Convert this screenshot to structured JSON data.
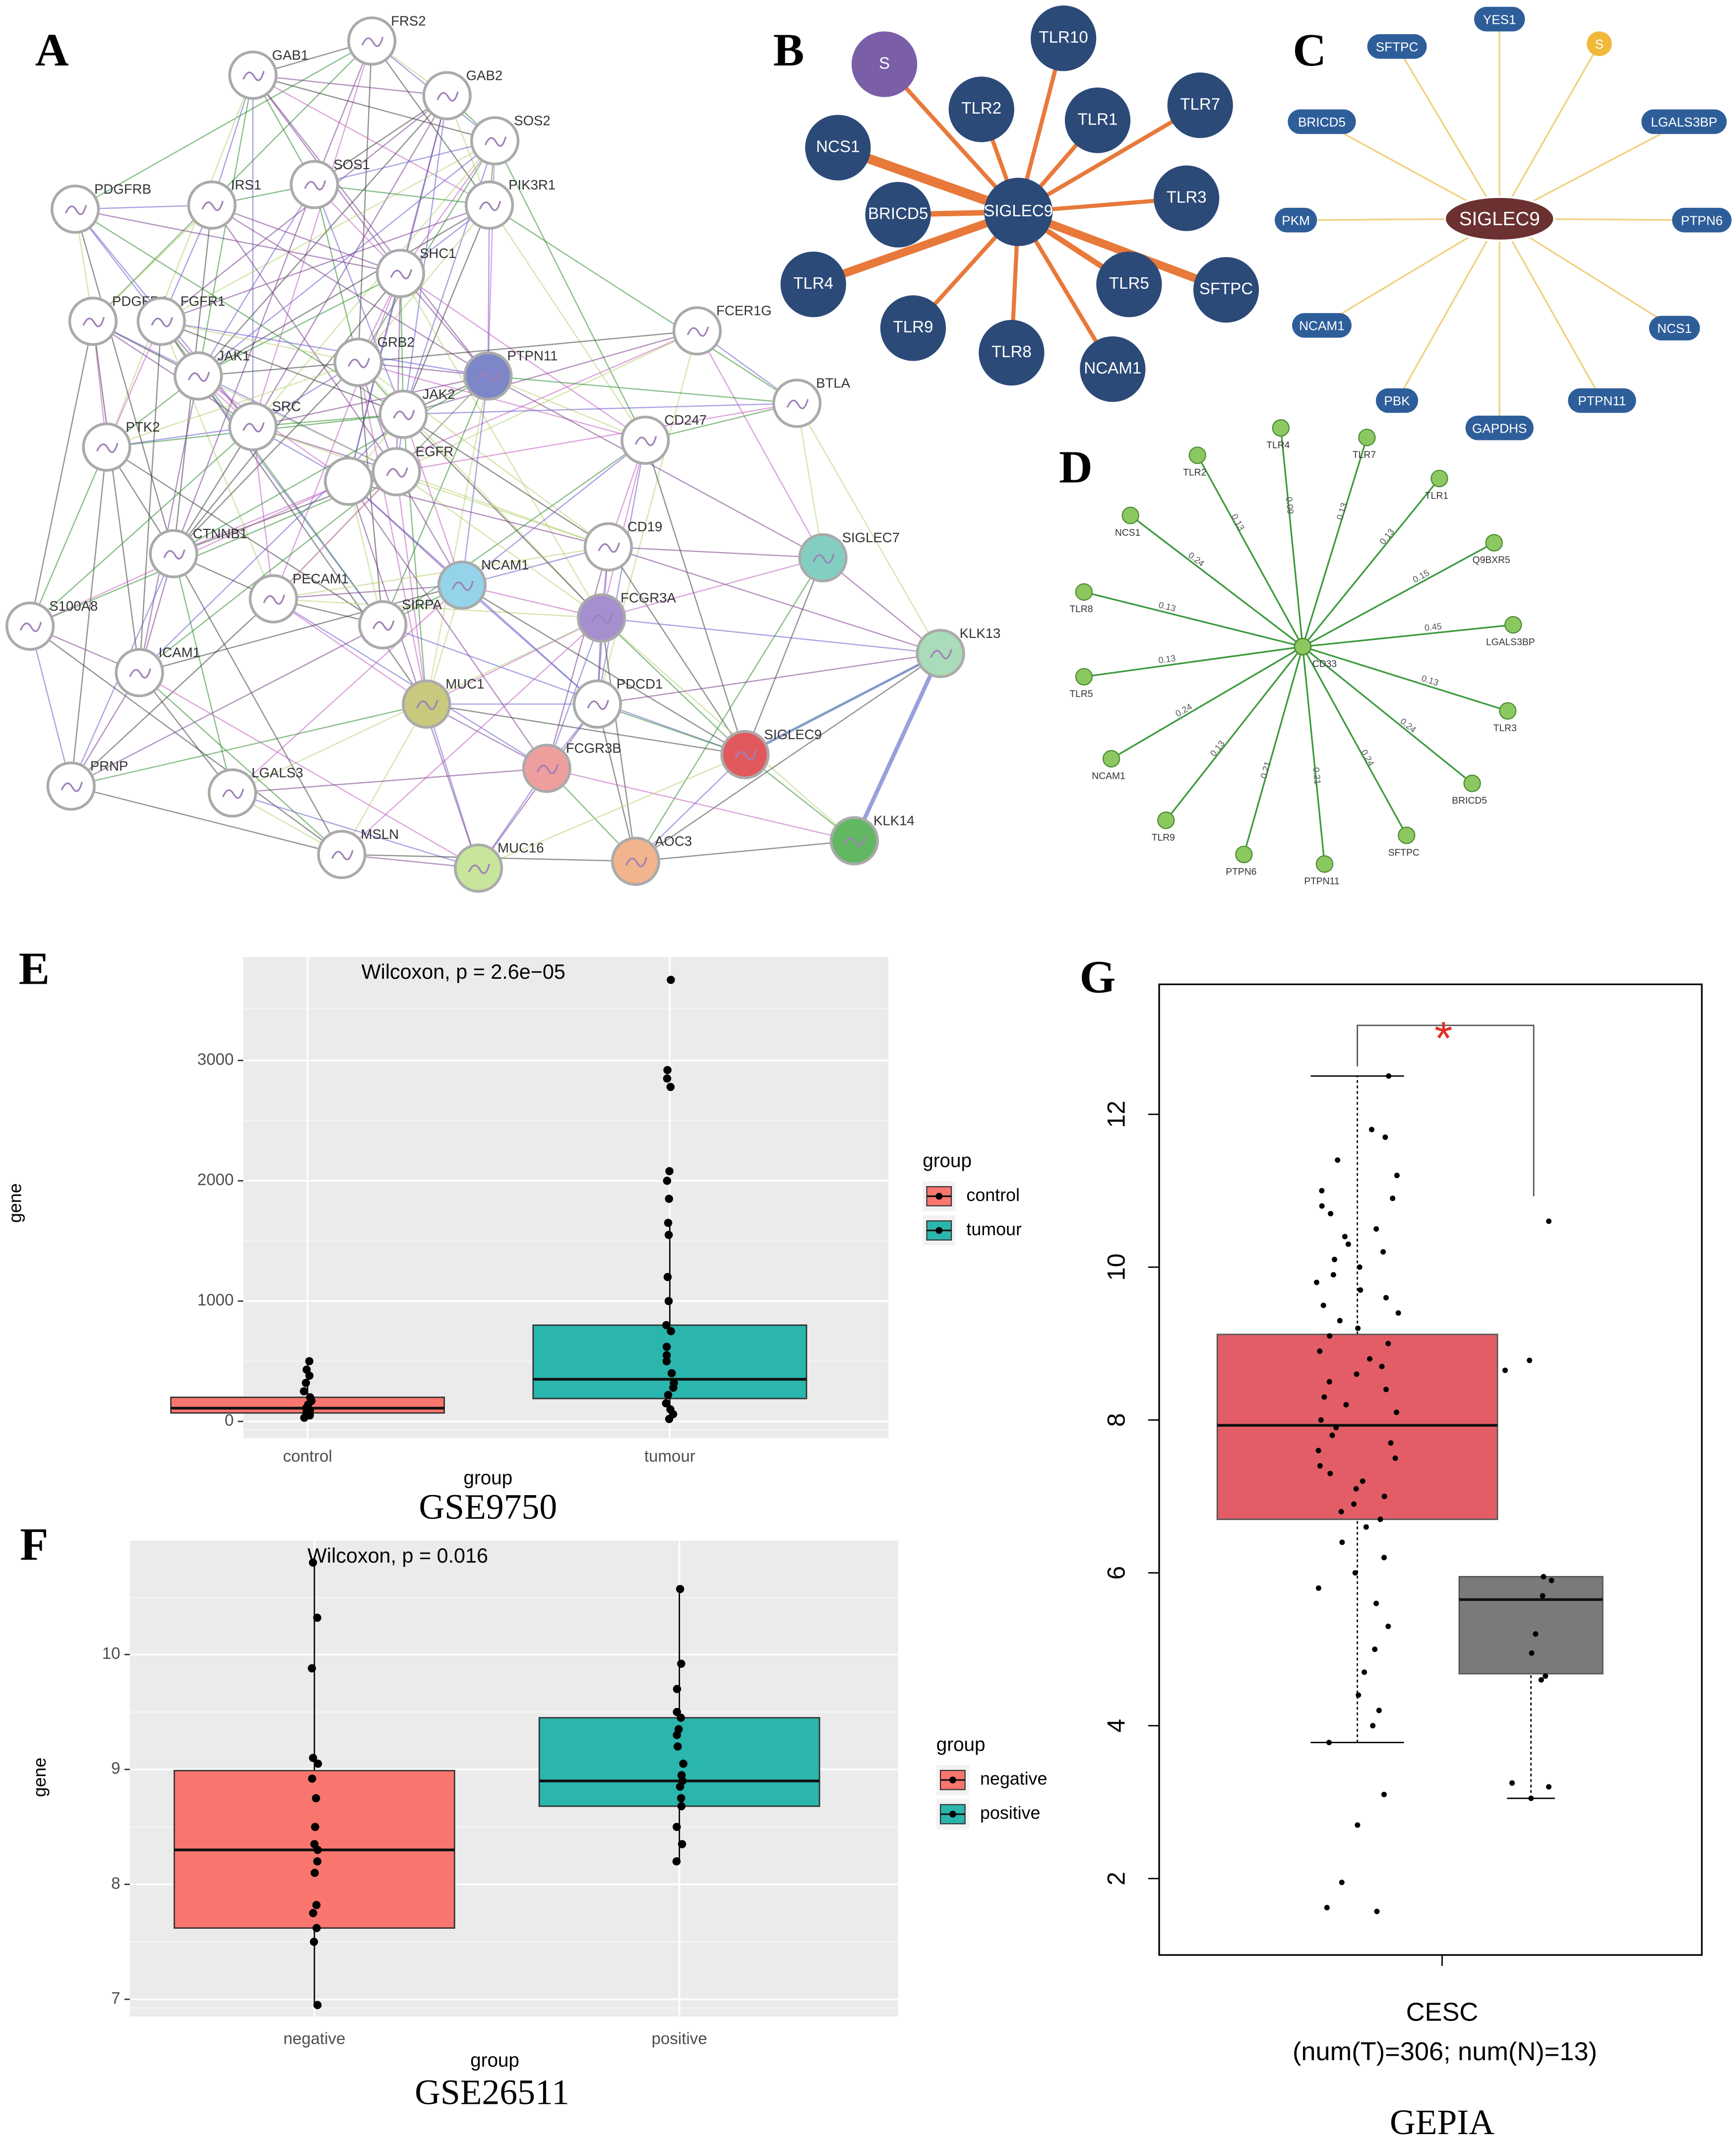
{
  "chart_data": [
    {
      "type": "network",
      "panel": "A",
      "nodes": [
        {
          "label": "FRS2",
          "color": "#ffffff"
        },
        {
          "label": "GAB1",
          "color": "#ffffff"
        },
        {
          "label": "GAB2",
          "color": "#ffffff"
        },
        {
          "label": "SOS2",
          "color": "#ffffff"
        },
        {
          "label": "PDGFRB",
          "color": "#ffffff"
        },
        {
          "label": "IRS1",
          "color": "#ffffff"
        },
        {
          "label": "SOS1",
          "color": "#ffffff"
        },
        {
          "label": "PIK3R1",
          "color": "#ffffff"
        },
        {
          "label": "SHC1",
          "color": "#ffffff"
        },
        {
          "label": "FCER1G",
          "color": "#ffffff"
        },
        {
          "label": "PDGFRA",
          "color": "#ffffff"
        },
        {
          "label": "FGFR1",
          "color": "#ffffff"
        },
        {
          "label": "JAK1",
          "color": "#ffffff"
        },
        {
          "label": "GRB2",
          "color": "#ffffff"
        },
        {
          "label": "PTPN11",
          "color": "#7c86c8"
        },
        {
          "label": "BTLA",
          "color": "#ffffff"
        },
        {
          "label": "PTK2",
          "color": "#ffffff"
        },
        {
          "label": "SRC",
          "color": "#ffffff"
        },
        {
          "label": "JAK2",
          "color": "#ffffff"
        },
        {
          "label": "CD247",
          "color": "#ffffff"
        },
        {
          "label": "EGFR",
          "color": "#ffffff"
        },
        {
          "label": "CTNNB1",
          "color": "#ffffff"
        },
        {
          "label": "CD19",
          "color": "#ffffff"
        },
        {
          "label": "SIGLEC7",
          "color": "#82cfc2"
        },
        {
          "label": "S100A8",
          "color": "#ffffff"
        },
        {
          "label": "PECAM1",
          "color": "#ffffff"
        },
        {
          "label": "NCAM1",
          "color": "#94d3ea"
        },
        {
          "label": "SIRPA",
          "color": "#ffffff"
        },
        {
          "label": "FCGR3A",
          "color": "#a58fcf"
        },
        {
          "label": "KLK13",
          "color": "#a9dcb8"
        },
        {
          "label": "ICAM1",
          "color": "#ffffff"
        },
        {
          "label": "MUC1",
          "color": "#c9c97e"
        },
        {
          "label": "PDCD1",
          "color": "#ffffff"
        },
        {
          "label": "PRNP",
          "color": "#ffffff"
        },
        {
          "label": "LGALS3",
          "color": "#ffffff"
        },
        {
          "label": "FCGR3B",
          "color": "#ef9e9e"
        },
        {
          "label": "SIGLEC9",
          "color": "#e2595d"
        },
        {
          "label": "MSLN",
          "color": "#ffffff"
        },
        {
          "label": "MUC16",
          "color": "#c8e59c"
        },
        {
          "label": "AOC3",
          "color": "#f2b48c"
        },
        {
          "label": "KLK14",
          "color": "#62b862"
        }
      ]
    },
    {
      "type": "star-network",
      "panel": "B",
      "center": "SIGLEC9",
      "node_color": "#2c4a78",
      "edge_color": "#e8793a",
      "nodes": [
        {
          "label": "S",
          "color": "#7b5ea8"
        },
        {
          "label": "TLR10",
          "color": "#2c4a78"
        },
        {
          "label": "TLR2",
          "color": "#2c4a78"
        },
        {
          "label": "TLR1",
          "color": "#2c4a78"
        },
        {
          "label": "TLR7",
          "color": "#2c4a78"
        },
        {
          "label": "NCS1",
          "color": "#2c4a78"
        },
        {
          "label": "TLR3",
          "color": "#2c4a78"
        },
        {
          "label": "BRICD5",
          "color": "#2c4a78"
        },
        {
          "label": "TLR4",
          "color": "#2c4a78"
        },
        {
          "label": "TLR5",
          "color": "#2c4a78"
        },
        {
          "label": "SFTPC",
          "color": "#2c4a78"
        },
        {
          "label": "TLR9",
          "color": "#2c4a78"
        },
        {
          "label": "TLR8",
          "color": "#2c4a78"
        },
        {
          "label": "NCAM1",
          "color": "#2c4a78"
        }
      ]
    },
    {
      "type": "pill-network",
      "panel": "C",
      "center": "SIGLEC9",
      "center_color": "#6b3030",
      "edge_color": "#f0d080",
      "nodes": [
        {
          "label": "YES1",
          "color": "#2e5e9a"
        },
        {
          "label": "S",
          "color": "#f0b93a"
        },
        {
          "label": "SFTPC",
          "color": "#2e5e9a"
        },
        {
          "label": "LGALS3BP",
          "color": "#2e5e9a"
        },
        {
          "label": "BRICD5",
          "color": "#2e5e9a"
        },
        {
          "label": "PTPN6",
          "color": "#2e5e9a"
        },
        {
          "label": "PKM",
          "color": "#2e5e9a"
        },
        {
          "label": "NCS1",
          "color": "#2e5e9a"
        },
        {
          "label": "NCAM1",
          "color": "#2e5e9a"
        },
        {
          "label": "PTPN11",
          "color": "#2e5e9a"
        },
        {
          "label": "PBK",
          "color": "#2e5e9a"
        },
        {
          "label": "GAPDHS",
          "color": "#2e5e9a"
        }
      ]
    },
    {
      "type": "weighted-network",
      "panel": "D",
      "center": "CD33",
      "node_color": "#8cc860",
      "edge_color": "#3c9a3c",
      "nodes": [
        {
          "label": "TLR2",
          "weight": 0.13
        },
        {
          "label": "TLR4",
          "weight": 0.09
        },
        {
          "label": "TLR7",
          "weight": 0.13
        },
        {
          "label": "TLR1",
          "weight": 0.13
        },
        {
          "label": "NCS1",
          "weight": 0.24
        },
        {
          "label": "Q9BXR5",
          "weight": 0.15
        },
        {
          "label": "TLR8",
          "weight": 0.13
        },
        {
          "label": "LGALS3BP",
          "weight": 0.45
        },
        {
          "label": "TLR5",
          "weight": 0.13
        },
        {
          "label": "TLR3",
          "weight": 0.13
        },
        {
          "label": "NCAM1",
          "weight": 0.24
        },
        {
          "label": "BRICD5",
          "weight": 0.24
        },
        {
          "label": "TLR9",
          "weight": 0.13
        },
        {
          "label": "SFTPC",
          "weight": 0.24
        },
        {
          "label": "PTPN6",
          "weight": 0.21
        },
        {
          "label": "PTPN11",
          "weight": 0.21
        }
      ]
    },
    {
      "type": "box",
      "panel": "E",
      "title": "Wilcoxon, p = 2.6e−05",
      "xlabel": "group",
      "ylabel": "gene",
      "caption": "GSE9750",
      "legend_title": "group",
      "categories": [
        "control",
        "tumour"
      ],
      "grid": true,
      "ylim": [
        -140,
        3860
      ],
      "yticks": [
        0,
        1000,
        2000,
        3000
      ],
      "series": [
        {
          "name": "control",
          "color": "#f8766d",
          "q1": 70,
          "median": 110,
          "q3": 200,
          "whisker_low": 30,
          "whisker_high": 500,
          "points": [
            500,
            430,
            380,
            320,
            250,
            200,
            170,
            140,
            110,
            90,
            70,
            50,
            30
          ]
        },
        {
          "name": "tumour",
          "color": "#2ab5ad",
          "q1": 190,
          "median": 350,
          "q3": 800,
          "whisker_low": 20,
          "whisker_high": 1650,
          "points": [
            3670,
            2920,
            2850,
            2780,
            2080,
            2000,
            1850,
            1650,
            1550,
            1200,
            1000,
            800,
            750,
            620,
            550,
            500,
            400,
            320,
            280,
            220,
            150,
            100,
            60,
            20
          ]
        }
      ]
    },
    {
      "type": "box",
      "panel": "F",
      "title": "Wilcoxon, p = 0.016",
      "xlabel": "group",
      "ylabel": "gene",
      "caption": "GSE26511",
      "legend_title": "group",
      "categories": [
        "negative",
        "positive"
      ],
      "grid": true,
      "ylim": [
        6.85,
        10.99
      ],
      "yticks": [
        7,
        8,
        9,
        10
      ],
      "series": [
        {
          "name": "negative",
          "color": "#f8766d",
          "q1": 7.62,
          "median": 8.3,
          "q3": 8.99,
          "whisker_low": 6.95,
          "whisker_high": 10.8,
          "points": [
            10.8,
            10.32,
            9.88,
            9.1,
            9.05,
            8.92,
            8.75,
            8.5,
            8.35,
            8.3,
            8.2,
            8.1,
            7.82,
            7.75,
            7.62,
            7.5,
            6.95
          ]
        },
        {
          "name": "positive",
          "color": "#2ab5ad",
          "q1": 8.68,
          "median": 8.9,
          "q3": 9.45,
          "whisker_low": 8.2,
          "whisker_high": 10.57,
          "points": [
            10.57,
            9.92,
            9.7,
            9.5,
            9.45,
            9.35,
            9.3,
            9.2,
            9.05,
            8.95,
            8.9,
            8.85,
            8.75,
            8.68,
            8.5,
            8.35,
            8.2
          ]
        }
      ]
    },
    {
      "type": "box-gepia",
      "panel": "G",
      "xlabel": "CESC",
      "xlabel_sub": "(num(T)=306; num(N)=13)",
      "caption": "GEPIA",
      "annotation": "*",
      "annotation_color": "#e0302a",
      "categories": [
        null,
        null
      ],
      "grid": false,
      "ylim": [
        1.0,
        13.7
      ],
      "yticks": [
        2,
        4,
        6,
        8,
        10,
        12
      ],
      "series": [
        {
          "color": "#e25d66",
          "q1": 6.7,
          "median": 7.93,
          "q3": 9.12,
          "whisker_low": 3.78,
          "whisker_high": 12.5,
          "points": [
            12.5,
            11.8,
            11.7,
            11.4,
            11.2,
            11.0,
            10.9,
            10.8,
            10.7,
            10.5,
            10.4,
            10.3,
            10.2,
            10.1,
            10.0,
            9.9,
            9.8,
            9.7,
            9.6,
            9.5,
            9.4,
            9.3,
            9.2,
            9.1,
            9.0,
            8.9,
            8.8,
            8.7,
            8.6,
            8.5,
            8.4,
            8.3,
            8.2,
            8.1,
            8.0,
            7.9,
            7.8,
            7.7,
            7.6,
            7.5,
            7.4,
            7.3,
            7.2,
            7.1,
            7.0,
            6.9,
            6.8,
            6.7,
            6.6,
            6.4,
            6.2,
            6.0,
            5.8,
            5.6,
            5.3,
            5.0,
            4.7,
            4.4,
            4.2,
            4.0,
            3.78,
            3.1,
            2.7,
            1.95,
            1.62,
            1.57
          ]
        },
        {
          "color": "#7a7a7a",
          "q1": 4.68,
          "median": 5.65,
          "q3": 5.95,
          "whisker_low": 3.05,
          "whisker_high": 5.95,
          "points": [
            10.6,
            8.78,
            8.65,
            5.95,
            5.9,
            5.7,
            5.2,
            4.95,
            4.65,
            4.6,
            3.25,
            3.2,
            3.05
          ]
        }
      ]
    }
  ]
}
